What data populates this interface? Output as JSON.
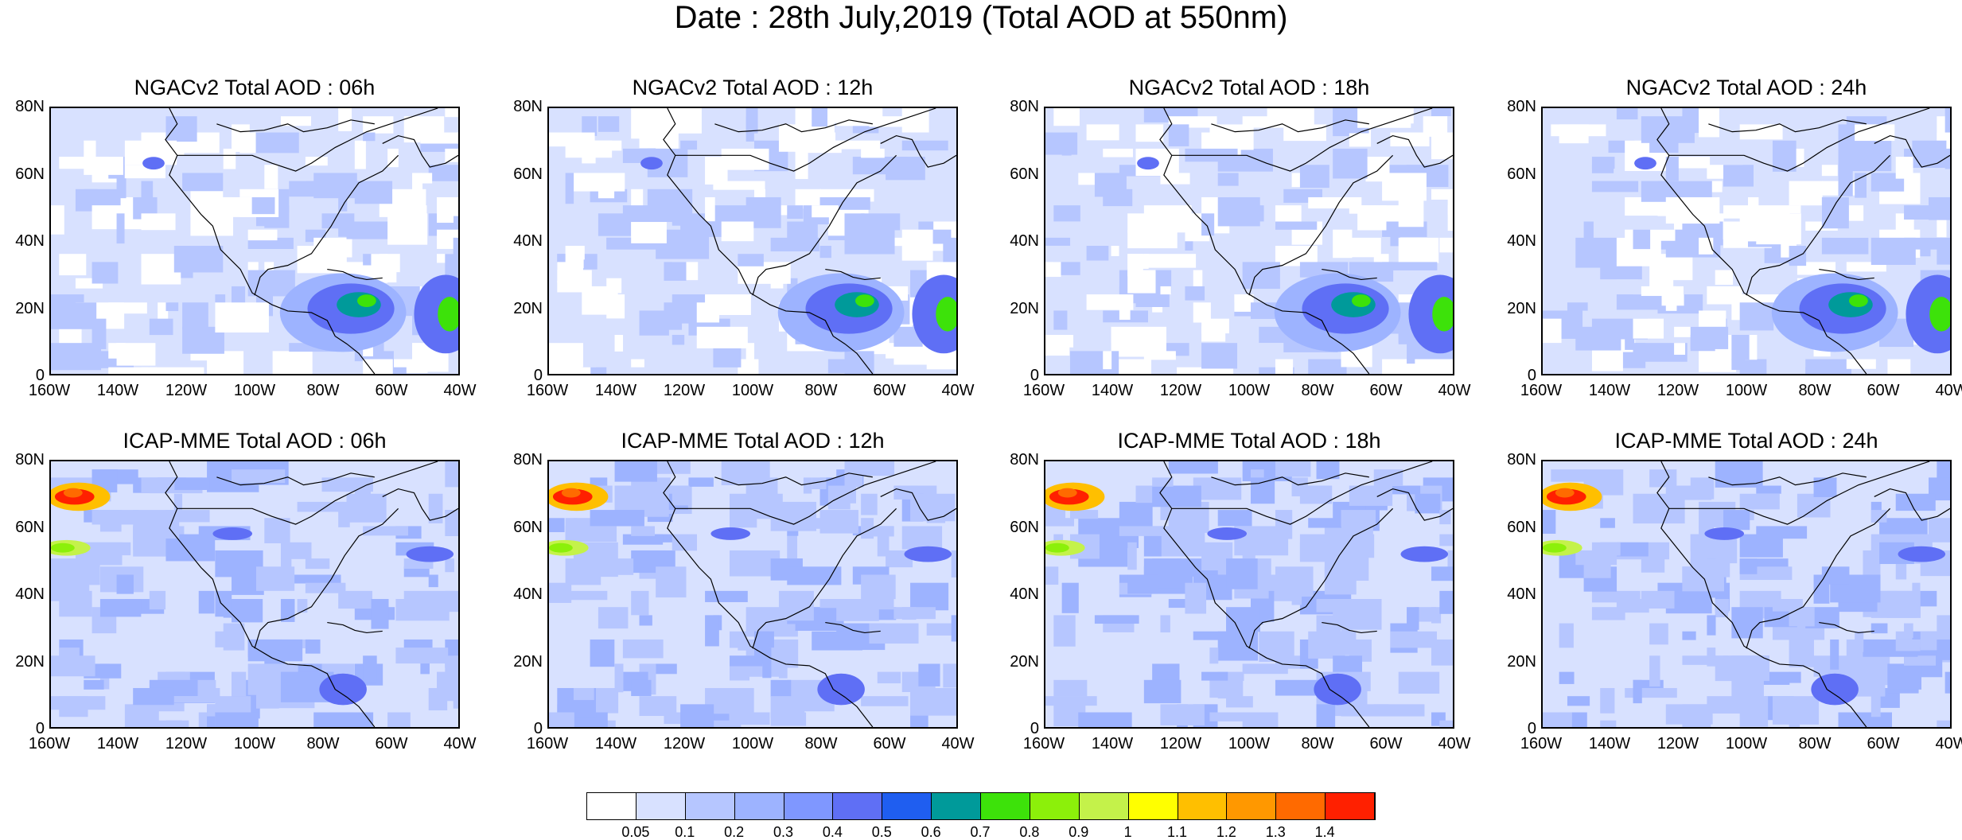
{
  "title": "Date : 28th July,2019 (Total AOD at 550nm)",
  "panels": [
    {
      "title": "NGACv2 Total AOD : 06h",
      "model": "NGACv2",
      "hour": "06h"
    },
    {
      "title": "NGACv2 Total AOD : 12h",
      "model": "NGACv2",
      "hour": "12h"
    },
    {
      "title": "NGACv2 Total AOD : 18h",
      "model": "NGACv2",
      "hour": "18h"
    },
    {
      "title": "NGACv2 Total AOD : 24h",
      "model": "NGACv2",
      "hour": "24h"
    },
    {
      "title": "ICAP-MME Total AOD : 06h",
      "model": "ICAP-MME",
      "hour": "06h"
    },
    {
      "title": "ICAP-MME Total AOD : 12h",
      "model": "ICAP-MME",
      "hour": "12h"
    },
    {
      "title": "ICAP-MME Total AOD : 18h",
      "model": "ICAP-MME",
      "hour": "18h"
    },
    {
      "title": "ICAP-MME Total AOD : 24h",
      "model": "ICAP-MME",
      "hour": "24h"
    }
  ],
  "axes": {
    "lat_ticks": [
      "80N",
      "60N",
      "40N",
      "20N",
      "0"
    ],
    "lon_ticks": [
      "160W",
      "140W",
      "120W",
      "100W",
      "80W",
      "60W",
      "40W"
    ],
    "lat_range": [
      0,
      80
    ],
    "lon_range": [
      -160,
      -40
    ]
  },
  "colorbar": {
    "levels": [
      "0.05",
      "0.1",
      "0.2",
      "0.3",
      "0.4",
      "0.5",
      "0.6",
      "0.7",
      "0.8",
      "0.9",
      "1",
      "1.1",
      "1.2",
      "1.3",
      "1.4"
    ],
    "colors": [
      "#ffffff",
      "#d8e1ff",
      "#b6c6ff",
      "#9db3ff",
      "#7f97ff",
      "#5f6ff5",
      "#1f5ef0",
      "#009a9a",
      "#3de20a",
      "#8cf00a",
      "#c4f24a",
      "#ffff00",
      "#ffbf00",
      "#ff9800",
      "#ff6a00",
      "#ff2000"
    ]
  }
}
